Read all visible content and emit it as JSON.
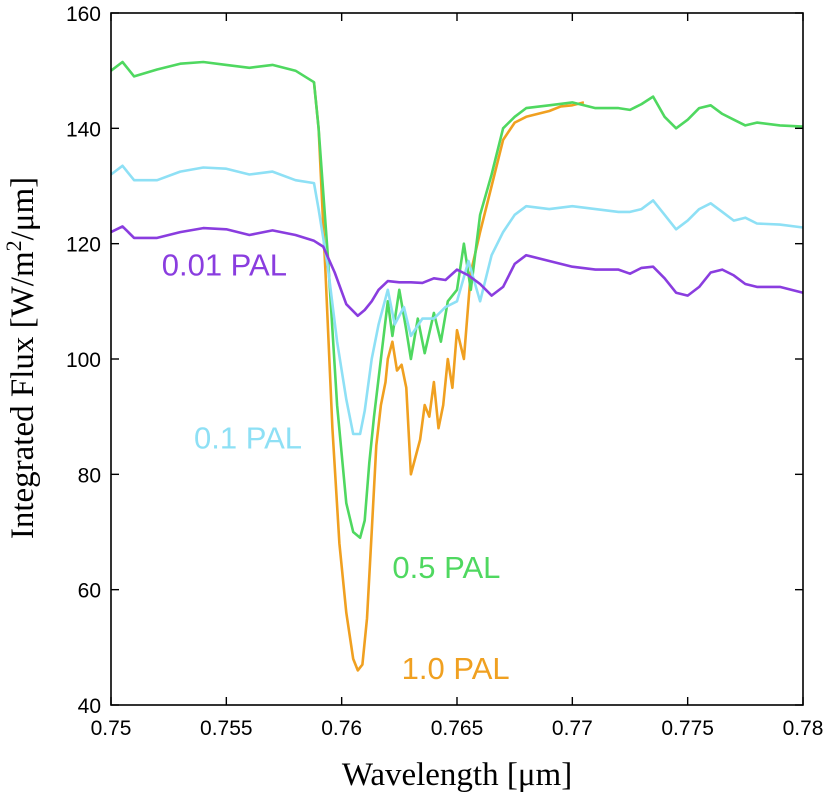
{
  "chart_data": {
    "type": "line",
    "title": "",
    "xlabel": "Wavelength [μm]",
    "ylabel_prefix": "Integrated Flux [W/m",
    "ylabel_sup": "2",
    "ylabel_suffix": "/μm]",
    "xlim": [
      0.75,
      0.78
    ],
    "ylim": [
      40,
      160
    ],
    "xticks": [
      0.75,
      0.755,
      0.76,
      0.765,
      0.77,
      0.775,
      0.78
    ],
    "xtick_labels": [
      "0.75",
      "0.755",
      "0.76",
      "0.765",
      "0.77",
      "0.775",
      "0.78"
    ],
    "yticks": [
      40,
      60,
      80,
      100,
      120,
      140,
      160
    ],
    "ytick_labels": [
      "40",
      "60",
      "80",
      "100",
      "120",
      "140",
      "160"
    ],
    "grid": false,
    "series": [
      {
        "name": "0.01 PAL",
        "color": "#8a3ddf",
        "x": [
          0.75,
          0.7505,
          0.751,
          0.752,
          0.753,
          0.754,
          0.755,
          0.756,
          0.757,
          0.758,
          0.7588,
          0.7592,
          0.7597,
          0.7602,
          0.7607,
          0.761,
          0.7613,
          0.7616,
          0.762,
          0.7625,
          0.763,
          0.7635,
          0.764,
          0.7645,
          0.765,
          0.7655,
          0.766,
          0.7665,
          0.767,
          0.7675,
          0.768,
          0.769,
          0.77,
          0.771,
          0.772,
          0.7725,
          0.773,
          0.7735,
          0.774,
          0.7745,
          0.775,
          0.7755,
          0.776,
          0.7765,
          0.777,
          0.7775,
          0.778,
          0.779,
          0.78
        ],
        "y": [
          122,
          123,
          121,
          121,
          122,
          122.7,
          122.5,
          121.5,
          122.3,
          121.5,
          120.5,
          119.5,
          115,
          109.5,
          107.5,
          108.5,
          110,
          112,
          113.5,
          113.3,
          113.3,
          113.2,
          114,
          113.7,
          115.5,
          114.5,
          113,
          111,
          112.5,
          116.5,
          118,
          117,
          116,
          115.5,
          115.5,
          114.8,
          115.8,
          116,
          114,
          111.5,
          111,
          112.5,
          115,
          115.5,
          114.5,
          113,
          112.5,
          112.5,
          111.5
        ]
      },
      {
        "name": "0.1 PAL",
        "color": "#8ee0f5",
        "x": [
          0.75,
          0.7505,
          0.751,
          0.752,
          0.753,
          0.754,
          0.755,
          0.756,
          0.757,
          0.758,
          0.7588,
          0.759,
          0.7594,
          0.7598,
          0.7602,
          0.7605,
          0.7608,
          0.761,
          0.7613,
          0.7616,
          0.762,
          0.7623,
          0.7627,
          0.763,
          0.7635,
          0.764,
          0.7645,
          0.765,
          0.7655,
          0.766,
          0.7665,
          0.767,
          0.7675,
          0.768,
          0.769,
          0.77,
          0.771,
          0.772,
          0.7725,
          0.773,
          0.7735,
          0.774,
          0.7745,
          0.775,
          0.7755,
          0.776,
          0.7765,
          0.777,
          0.7775,
          0.778,
          0.779,
          0.78
        ],
        "y": [
          132,
          133.5,
          131,
          131,
          132.5,
          133.2,
          133,
          132,
          132.5,
          131,
          130.5,
          126,
          116,
          103,
          93,
          87,
          87,
          91,
          100,
          106,
          112,
          106,
          109,
          104,
          107,
          107,
          109,
          110,
          117,
          110,
          118,
          122,
          125,
          126.5,
          126,
          126.5,
          126,
          125.5,
          125.5,
          126,
          127.5,
          125,
          122.5,
          124,
          126,
          127,
          125.5,
          124,
          124.5,
          123.5,
          123.3,
          122.8
        ]
      },
      {
        "name": "0.5 PAL",
        "color": "#4fd860",
        "x": [
          0.75,
          0.7505,
          0.751,
          0.752,
          0.753,
          0.754,
          0.755,
          0.756,
          0.757,
          0.758,
          0.7588,
          0.759,
          0.7594,
          0.7598,
          0.7602,
          0.7605,
          0.7608,
          0.761,
          0.7612,
          0.7614,
          0.7617,
          0.762,
          0.7622,
          0.7625,
          0.7628,
          0.763,
          0.7633,
          0.7636,
          0.764,
          0.7643,
          0.7646,
          0.765,
          0.7653,
          0.7656,
          0.766,
          0.7665,
          0.767,
          0.7675,
          0.768,
          0.769,
          0.77,
          0.771,
          0.772,
          0.7725,
          0.773,
          0.7735,
          0.774,
          0.7745,
          0.775,
          0.7755,
          0.776,
          0.7765,
          0.777,
          0.7775,
          0.778,
          0.779,
          0.78
        ],
        "y": [
          150,
          151.5,
          149,
          150.2,
          151.2,
          151.5,
          151,
          150.5,
          151,
          150,
          148,
          140,
          118,
          92,
          75,
          70,
          69,
          72,
          82,
          90,
          100,
          110,
          104,
          112,
          105,
          100,
          107,
          101,
          108,
          103,
          110,
          112,
          120,
          112,
          125,
          132,
          140,
          142,
          143.5,
          144,
          144.5,
          143.5,
          143.5,
          143.2,
          144.2,
          145.5,
          142,
          140,
          141.5,
          143.5,
          144,
          142.5,
          141.5,
          140.5,
          141,
          140.5,
          140.3
        ]
      },
      {
        "name": "1.0 PAL",
        "color": "#f0a020",
        "x": [
          0.7588,
          0.759,
          0.7593,
          0.7596,
          0.7599,
          0.7602,
          0.7605,
          0.7607,
          0.7609,
          0.7611,
          0.7613,
          0.7615,
          0.7617,
          0.7619,
          0.762,
          0.7622,
          0.7624,
          0.7626,
          0.7628,
          0.763,
          0.7632,
          0.7634,
          0.7636,
          0.7638,
          0.764,
          0.7642,
          0.7644,
          0.7646,
          0.7648,
          0.765,
          0.7653,
          0.7656,
          0.766,
          0.7665,
          0.767,
          0.7675,
          0.768,
          0.7685,
          0.769,
          0.7695,
          0.77,
          0.7705
        ],
        "y": [
          148,
          140,
          115,
          88,
          68,
          56,
          48,
          46,
          47,
          55,
          70,
          85,
          92,
          96,
          100,
          103,
          98,
          99,
          95,
          80,
          83,
          86,
          92,
          90,
          96,
          88,
          92,
          100,
          95,
          105,
          100,
          115,
          122,
          130,
          138,
          141,
          142,
          142.5,
          143,
          143.8,
          144,
          144.5
        ]
      }
    ]
  }
}
